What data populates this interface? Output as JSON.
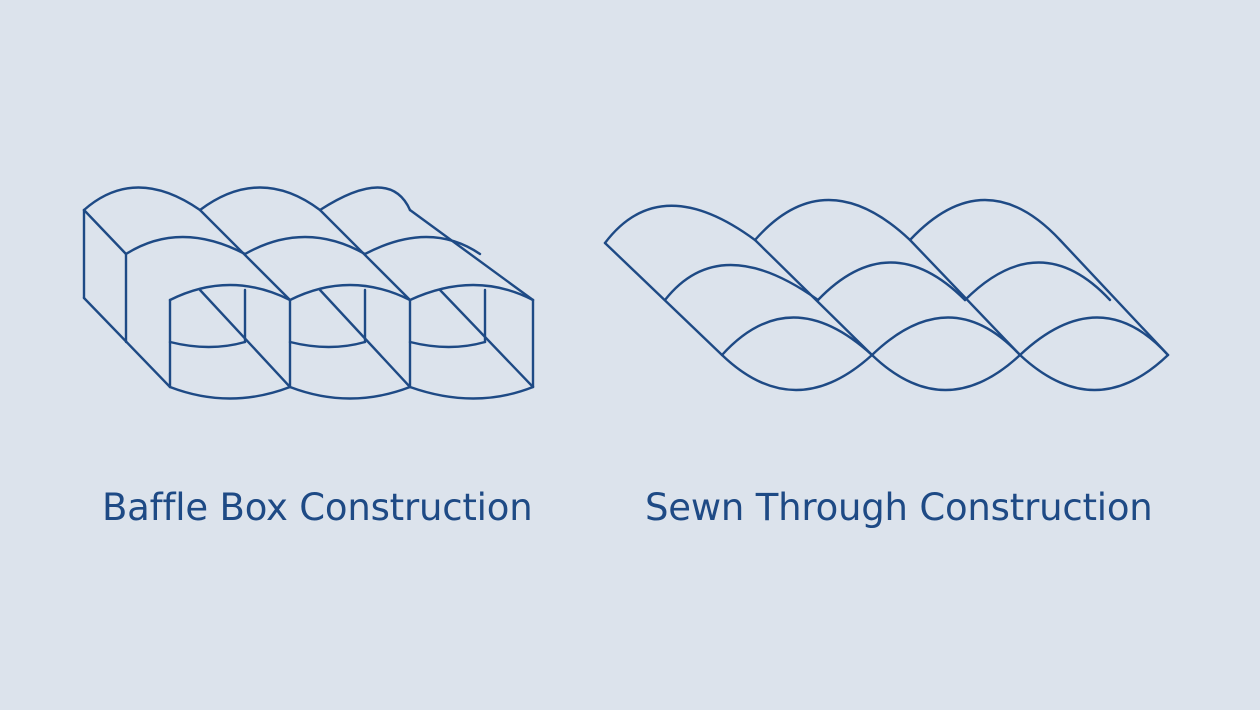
{
  "colors": {
    "background": "#dce3ec",
    "stroke": "#1e4a85",
    "text": "#1e4a85"
  },
  "diagrams": [
    {
      "icon": "baffle-box-construction-illustration",
      "caption": "Baffle Box Construction"
    },
    {
      "icon": "sewn-through-construction-illustration",
      "caption": "Sewn Through Construction"
    }
  ]
}
